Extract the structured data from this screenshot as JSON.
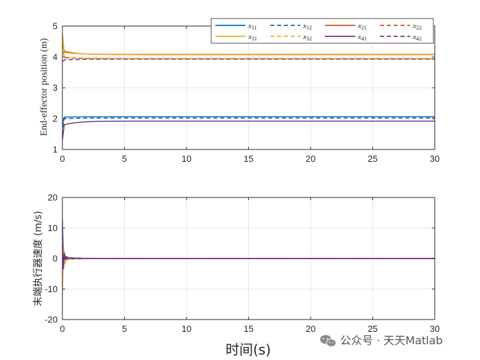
{
  "chart_data": [
    {
      "type": "line",
      "ylabel": "End-effector position (m)",
      "xlim": [
        0,
        30
      ],
      "ylim": [
        1,
        5
      ],
      "x_ticks": [
        0,
        5,
        10,
        15,
        20,
        25,
        30
      ],
      "y_ticks": [
        1,
        2,
        3,
        4,
        5
      ],
      "grid": true,
      "legend_placement": "top-right",
      "series": [
        {
          "name": "x11",
          "label_base": "x",
          "label_sub": "11",
          "color": "#0072BD",
          "dash": false,
          "initial": 1.8,
          "peak": 2.05,
          "final": 2.06
        },
        {
          "name": "x12",
          "label_base": "x",
          "label_sub": "12",
          "color": "#0072BD",
          "dash": true,
          "initial": 1.5,
          "peak": 2.0,
          "final": 2.02
        },
        {
          "name": "x21",
          "label_base": "x",
          "label_sub": "21",
          "color": "#D95319",
          "dash": false,
          "initial": 4.7,
          "peak": 4.16,
          "final": 4.08
        },
        {
          "name": "x22",
          "label_base": "x",
          "label_sub": "22",
          "color": "#D95319",
          "dash": true,
          "initial": 4.4,
          "peak": 3.97,
          "final": 3.94
        },
        {
          "name": "x31",
          "label_base": "x",
          "label_sub": "31",
          "color": "#EDB120",
          "dash": false,
          "initial": 4.75,
          "peak": 4.2,
          "final": 4.07
        },
        {
          "name": "x32",
          "label_base": "x",
          "label_sub": "32",
          "color": "#EDB120",
          "dash": true,
          "initial": 4.6,
          "peak": 4.0,
          "final": 3.95
        },
        {
          "name": "x41",
          "label_base": "x",
          "label_sub": "41",
          "color": "#7E2F8E",
          "dash": false,
          "initial": 1.3,
          "peak": 1.8,
          "final": 1.92
        },
        {
          "name": "x42",
          "label_base": "x",
          "label_sub": "42",
          "color": "#7E2F8E",
          "dash": true,
          "initial": 3.85,
          "peak": 3.9,
          "final": 3.93
        }
      ]
    },
    {
      "type": "line",
      "ylabel": "末端执行器速度 (m/s)",
      "xlabel": "时间(s)",
      "xlim": [
        0,
        30
      ],
      "ylim": [
        -20,
        20
      ],
      "x_ticks": [
        0,
        5,
        10,
        15,
        20,
        25,
        30
      ],
      "y_ticks": [
        -20,
        -10,
        0,
        10,
        20
      ],
      "grid": true,
      "series": [
        {
          "name": "x11",
          "color": "#0072BD",
          "dash": false,
          "initial": 12.5,
          "final": 0
        },
        {
          "name": "x12",
          "color": "#0072BD",
          "dash": true,
          "initial": 9.0,
          "final": 0
        },
        {
          "name": "x21",
          "color": "#D95319",
          "dash": false,
          "initial": -8.0,
          "final": 0
        },
        {
          "name": "x22",
          "color": "#D95319",
          "dash": true,
          "initial": -6.0,
          "final": 0
        },
        {
          "name": "x31",
          "color": "#EDB120",
          "dash": false,
          "initial": -11.5,
          "final": 0
        },
        {
          "name": "x32",
          "color": "#EDB120",
          "dash": true,
          "initial": -10.0,
          "final": 0
        },
        {
          "name": "x41",
          "color": "#7E2F8E",
          "dash": false,
          "initial": 9.5,
          "final": 0
        },
        {
          "name": "x42",
          "color": "#7E2F8E",
          "dash": true,
          "initial": -3.0,
          "final": 0
        }
      ]
    }
  ],
  "watermark": {
    "text": "公众号 · 天天Matlab",
    "icon": "wechat-icon",
    "color": "#777777"
  }
}
